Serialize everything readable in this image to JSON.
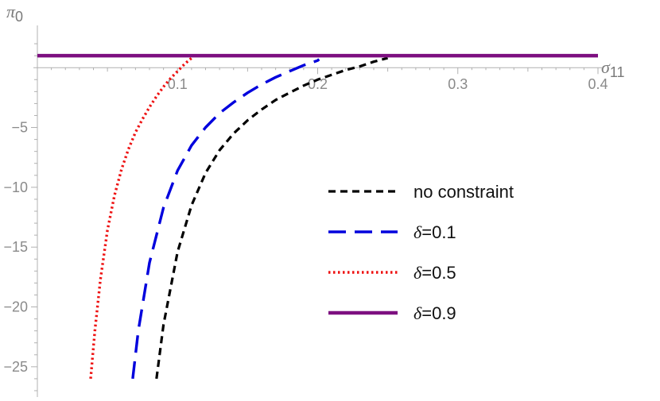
{
  "chart_data": {
    "type": "line",
    "title": "",
    "xlabel": {
      "main": "σ",
      "sub": "11"
    },
    "ylabel": {
      "main": "π",
      "sub": "0"
    },
    "xlim": [
      0,
      0.4
    ],
    "ylim": [
      -27,
      3
    ],
    "xticks": [
      {
        "value": 0.1,
        "label": "0.1"
      },
      {
        "value": 0.2,
        "label": "0.2"
      },
      {
        "value": 0.3,
        "label": "0.3"
      },
      {
        "value": 0.4,
        "label": "0.4"
      }
    ],
    "yticks": [
      {
        "value": -5,
        "label": "-5"
      },
      {
        "value": -10,
        "label": "-10"
      },
      {
        "value": -15,
        "label": "-15"
      },
      {
        "value": -20,
        "label": "-20"
      },
      {
        "value": -25,
        "label": "-25"
      }
    ],
    "grid": false,
    "legend_position": "right",
    "series": [
      {
        "name": "no constraint",
        "legend_prefix": "",
        "legend_value": "no constraint",
        "color": "#000000",
        "style": "short-dash",
        "x": [
          0.085,
          0.09,
          0.1,
          0.11,
          0.12,
          0.13,
          0.14,
          0.15,
          0.16,
          0.17,
          0.18,
          0.19,
          0.2,
          0.21,
          0.22,
          0.23,
          0.24,
          0.25
        ],
        "y": [
          -26.0,
          -21.5,
          -15.4,
          -11.5,
          -8.8,
          -6.9,
          -5.5,
          -4.4,
          -3.5,
          -2.7,
          -2.1,
          -1.5,
          -1.0,
          -0.6,
          -0.2,
          0.1,
          0.5,
          0.8
        ]
      },
      {
        "name": "δ=0.1",
        "legend_prefix": "δ",
        "legend_value": "=0.1",
        "color": "#0000dd",
        "style": "long-dash",
        "x": [
          0.068,
          0.072,
          0.08,
          0.09,
          0.1,
          0.11,
          0.12,
          0.13,
          0.14,
          0.15,
          0.16,
          0.17,
          0.18,
          0.19,
          0.2,
          0.201
        ],
        "y": [
          -26.0,
          -22.0,
          -16.3,
          -11.7,
          -8.6,
          -6.5,
          -5.0,
          -3.8,
          -2.9,
          -2.1,
          -1.4,
          -0.8,
          -0.3,
          0.2,
          0.6,
          0.7
        ]
      },
      {
        "name": "δ=0.5",
        "legend_prefix": "δ",
        "legend_value": "=0.5",
        "color": "#ee1111",
        "style": "dotted",
        "x": [
          0.038,
          0.041,
          0.045,
          0.05,
          0.055,
          0.06,
          0.065,
          0.07,
          0.075,
          0.08,
          0.085,
          0.09,
          0.095,
          0.1,
          0.105,
          0.11
        ],
        "y": [
          -26.0,
          -22.0,
          -17.7,
          -13.6,
          -10.7,
          -8.5,
          -6.8,
          -5.4,
          -4.3,
          -3.3,
          -2.4,
          -1.6,
          -0.9,
          -0.3,
          0.3,
          0.8
        ]
      },
      {
        "name": "δ=0.9",
        "legend_prefix": "δ",
        "legend_value": "=0.9",
        "color": "#7d0f80",
        "style": "solid",
        "x": [
          0,
          0.4
        ],
        "y": [
          1.0,
          1.0
        ]
      }
    ]
  }
}
